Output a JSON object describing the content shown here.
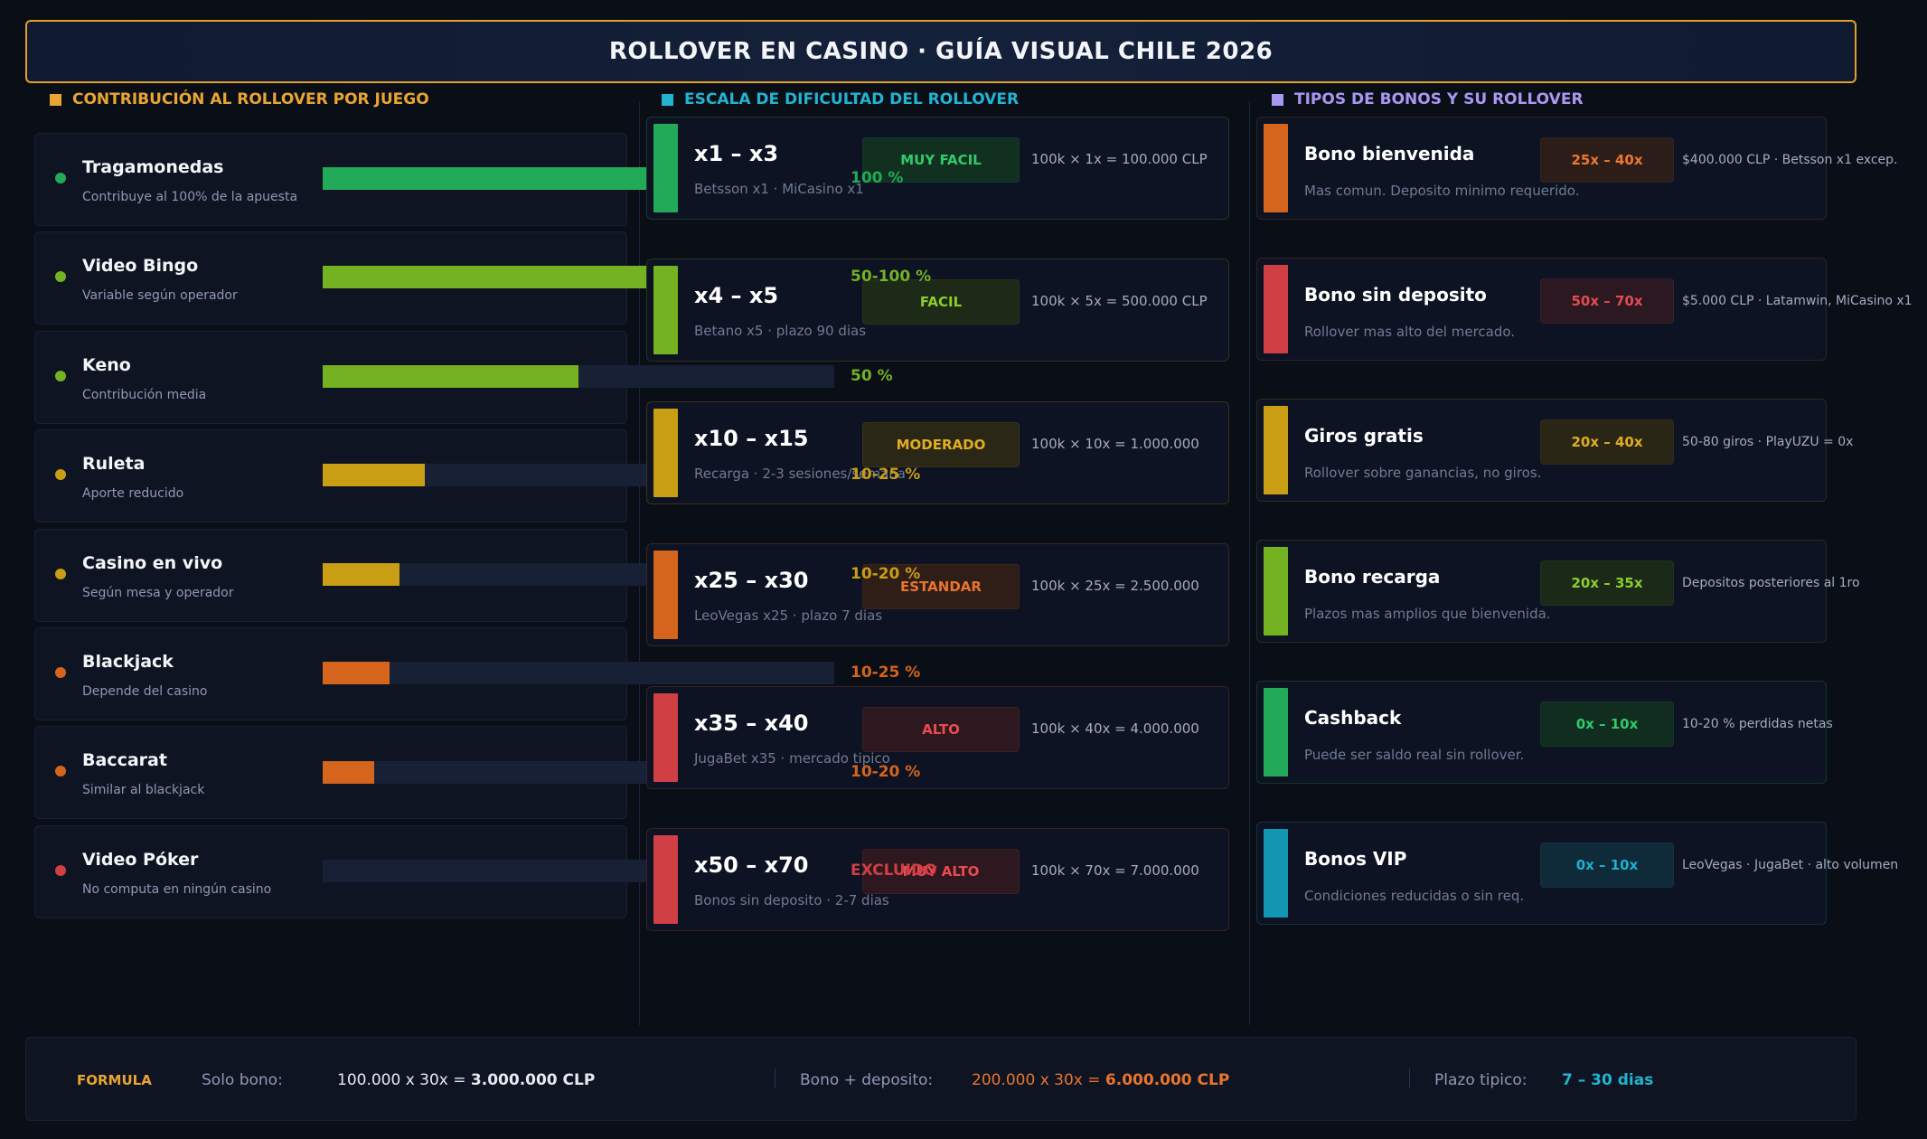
{
  "header": {
    "title": "ROLLOVER EN CASINO  ·  GUÍA VISUAL CHILE 2026"
  },
  "sections": {
    "left": {
      "title": "CONTRIBUCIÓN AL ROLLOVER POR JUEGO",
      "color": "#e8a532"
    },
    "middle": {
      "title": "ESCALA DE DIFICULTAD DEL ROLLOVER",
      "color": "#22b4d0"
    },
    "right": {
      "title": "TIPOS DE BONOS Y SU ROLLOVER",
      "color": "#a998f2"
    }
  },
  "games": [
    {
      "name": "Tragamonedas",
      "sub": "Contribuye al 100% de la apuesta",
      "label": "100 %",
      "fraction": 1.0,
      "color": "#22aa58"
    },
    {
      "name": "Video Bingo",
      "sub": "Variable según operador",
      "label": "50-100 %",
      "fraction": 1.0,
      "color": "#74b221"
    },
    {
      "name": "Keno",
      "sub": "Contribución media",
      "label": "50 %",
      "fraction": 0.5,
      "color": "#74b221"
    },
    {
      "name": "Ruleta",
      "sub": "Aporte reducido",
      "label": "10-25 %",
      "fraction": 0.2,
      "color": "#c99d14"
    },
    {
      "name": "Casino en vivo",
      "sub": "Según mesa y operador",
      "label": "10-20 %",
      "fraction": 0.15,
      "color": "#c99d14"
    },
    {
      "name": "Blackjack",
      "sub": "Depende del casino",
      "label": "10-25 %",
      "fraction": 0.13,
      "color": "#d5641c"
    },
    {
      "name": "Baccarat",
      "sub": "Similar al blackjack",
      "label": "10-20 %",
      "fraction": 0.1,
      "color": "#d5641c"
    },
    {
      "name": "Video Póker",
      "sub": "No computa en ningún casino",
      "label": "EXCLUIDO",
      "fraction": 0.0,
      "color": "#cf3f44"
    }
  ],
  "scale": [
    {
      "range": "x1 – x3",
      "sub": "Betsson x1 · MiCasino x1",
      "level": "MUY FACIL",
      "formula": "100k × 1x = 100.000 CLP",
      "color": "#22aa58",
      "badge_text": "#2fcb6b",
      "badge_bg": "#12301f",
      "border": "#173a2a"
    },
    {
      "range": "x4 – x5",
      "sub": "Betano x5 · plazo 90 dias",
      "level": "FACIL",
      "formula": "100k × 5x = 500.000 CLP",
      "color": "#74b221",
      "badge_text": "#8ccd2c",
      "badge_bg": "#1c2a17",
      "border": "#27331e"
    },
    {
      "range": "x10 – x15",
      "sub": "Recarga · 2-3 sesiones/semana",
      "level": "MODERADO",
      "formula": "100k × 10x = 1.000.000",
      "color": "#c99d14",
      "badge_text": "#e0ae22",
      "badge_bg": "#2b2716",
      "border": "#3a321a"
    },
    {
      "range": "x25 – x30",
      "sub": "LeoVegas x25 · plazo 7 dias",
      "level": "ESTANDAR",
      "formula": "100k × 25x = 2.500.000",
      "color": "#d5641c",
      "badge_text": "#e8742e",
      "badge_bg": "#2f1d17",
      "border": "#3c2619"
    },
    {
      "range": "x35 – x40",
      "sub": "JugaBet x35 · mercado tipico",
      "level": "ALTO",
      "formula": "100k × 40x = 4.000.000",
      "color": "#cf3f44",
      "badge_text": "#ea4a50",
      "badge_bg": "#2e1820",
      "border": "#3a2027"
    },
    {
      "range": "x50 – x70",
      "sub": "Bonos sin deposito · 2-7 dias",
      "level": "MUY ALTO",
      "formula": "100k × 70x = 7.000.000",
      "color": "#cf3f44",
      "badge_text": "#ea4a50",
      "badge_bg": "#2e1820",
      "border": "#3a2027"
    }
  ],
  "bonuses": [
    {
      "name": "Bono bienvenida",
      "desc": "Mas comun. Deposito minimo requerido.",
      "badge": "25x – 40x",
      "note": "$400.000 CLP · Betsson x1 excep.",
      "color": "#d5641c",
      "badge_text": "#ec7830",
      "badge_bg": "#2d1d18",
      "border": "#33241c"
    },
    {
      "name": "Bono sin deposito",
      "desc": "Rollover mas alto del mercado.",
      "badge": "50x – 70x",
      "note": "$5.000 CLP · Latamwin, MiCasino x1",
      "color": "#cf3f44",
      "badge_text": "#e34b52",
      "badge_bg": "#2b1820",
      "border": "#33202a"
    },
    {
      "name": "Giros gratis",
      "desc": "Rollover sobre ganancias, no giros.",
      "badge": "20x – 40x",
      "note": "50-80 giros · PlayUZU = 0x",
      "color": "#c99d14",
      "badge_text": "#e0ae22",
      "badge_bg": "#2a2616",
      "border": "#312b1a"
    },
    {
      "name": "Bono recarga",
      "desc": "Plazos mas amplios que bienvenida.",
      "badge": "20x – 35x",
      "note": "Depositos posteriores al 1ro",
      "color": "#74b221",
      "badge_text": "#8ccd2c",
      "badge_bg": "#1b2a18",
      "border": "#22331e"
    },
    {
      "name": "Cashback",
      "desc": "Puede ser saldo real sin rollover.",
      "badge": "0x – 10x",
      "note": "10-20 % perdidas netas",
      "color": "#22aa58",
      "badge_text": "#2fcb6b",
      "badge_bg": "#112d20",
      "border": "#17352a"
    },
    {
      "name": "Bonos VIP",
      "desc": "Condiciones reducidas o sin req.",
      "badge": "0x – 10x",
      "note": "LeoVegas · JugaBet · alto volumen",
      "color": "#1396b2",
      "badge_text": "#1fb0cf",
      "badge_bg": "#0f2a38",
      "border": "#163240"
    }
  ],
  "footer": {
    "label": "FORMULA",
    "solo_label": "Solo bono:",
    "solo_expr": "100.000 x 30x = ",
    "solo_result": "3.000.000 CLP",
    "dep_label": "Bono + deposito:",
    "dep_expr": "200.000 x 30x = ",
    "dep_result": "6.000.000 CLP",
    "plazo_label": "Plazo tipico:",
    "plazo_value": "7 – 30 dias"
  }
}
